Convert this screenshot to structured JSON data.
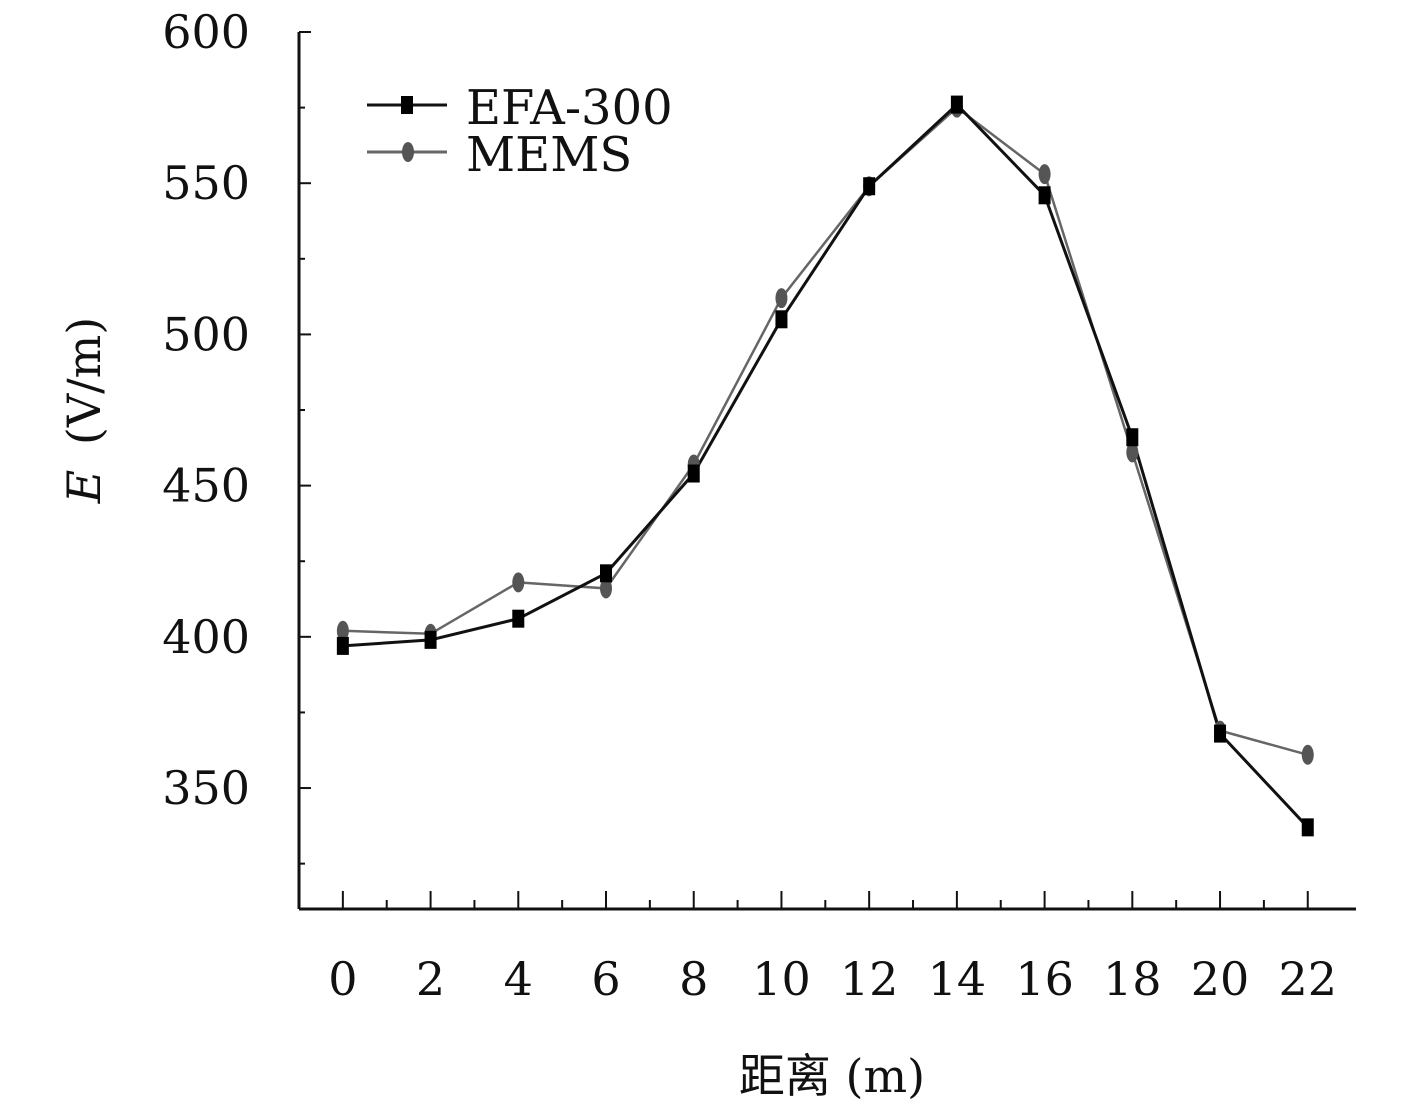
{
  "chart_data": {
    "type": "line",
    "x": [
      0,
      2,
      4,
      6,
      8,
      10,
      12,
      14,
      16,
      18,
      20,
      22
    ],
    "xticks": [
      "0",
      "2",
      "4",
      "6",
      "8",
      "10",
      "12",
      "14",
      "16",
      "18",
      "20",
      "22"
    ],
    "yticks": [
      "350",
      "400",
      "450",
      "500",
      "550",
      "600"
    ],
    "ytick_values": [
      350,
      400,
      450,
      500,
      550,
      600
    ],
    "xlim": [
      -1,
      23.1
    ],
    "ylim": [
      310,
      600
    ],
    "xlabel": "距离 (m)",
    "ylabel_var": "E",
    "ylabel_unit": "(V/m)",
    "grid": false,
    "legend_position": "top-left",
    "series": [
      {
        "name": "EFA-300",
        "marker": "square",
        "color": "#111111",
        "values": [
          397,
          399,
          406,
          421,
          454,
          505,
          549,
          576,
          546,
          466,
          368,
          337
        ]
      },
      {
        "name": "MEMS",
        "marker": "circle",
        "color": "#666666",
        "values": [
          402,
          401,
          418,
          416,
          457,
          512,
          549,
          575,
          553,
          461,
          369,
          361
        ]
      }
    ]
  }
}
